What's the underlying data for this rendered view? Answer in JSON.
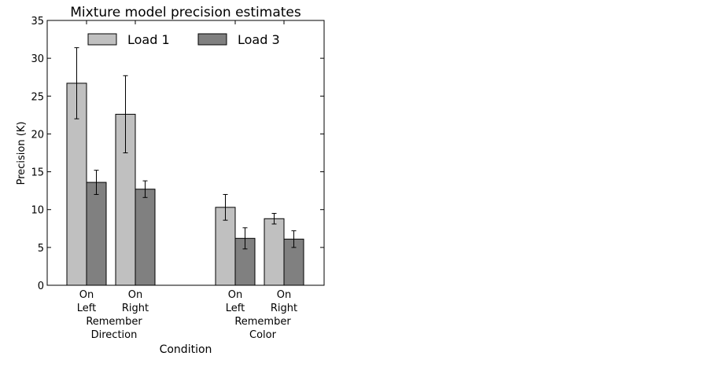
{
  "chart_data": {
    "type": "bar",
    "title": "Mixture model precision estimates",
    "xlabel": "Condition",
    "ylabel": "Precision (K)",
    "ylim": [
      0,
      35
    ],
    "yticks": [
      0,
      5,
      10,
      15,
      20,
      25,
      30,
      35
    ],
    "legend_position": "top-center",
    "groups": [
      {
        "line1": "Remember",
        "line2": "Direction",
        "categories": [
          {
            "line1": "On",
            "line2": "Left"
          },
          {
            "line1": "On",
            "line2": "Right"
          }
        ]
      },
      {
        "line1": "Remember",
        "line2": "Color",
        "categories": [
          {
            "line1": "On",
            "line2": "Left"
          },
          {
            "line1": "On",
            "line2": "Right"
          }
        ]
      }
    ],
    "series": [
      {
        "name": "Load 1",
        "color": "#c0c0c0",
        "values": [
          26.7,
          22.6,
          10.3,
          8.8
        ],
        "errors": [
          4.7,
          5.1,
          1.7,
          0.7
        ]
      },
      {
        "name": "Load 3",
        "color": "#808080",
        "values": [
          13.6,
          12.7,
          6.2,
          6.1
        ],
        "errors": [
          1.6,
          1.1,
          1.4,
          1.1
        ]
      }
    ]
  }
}
